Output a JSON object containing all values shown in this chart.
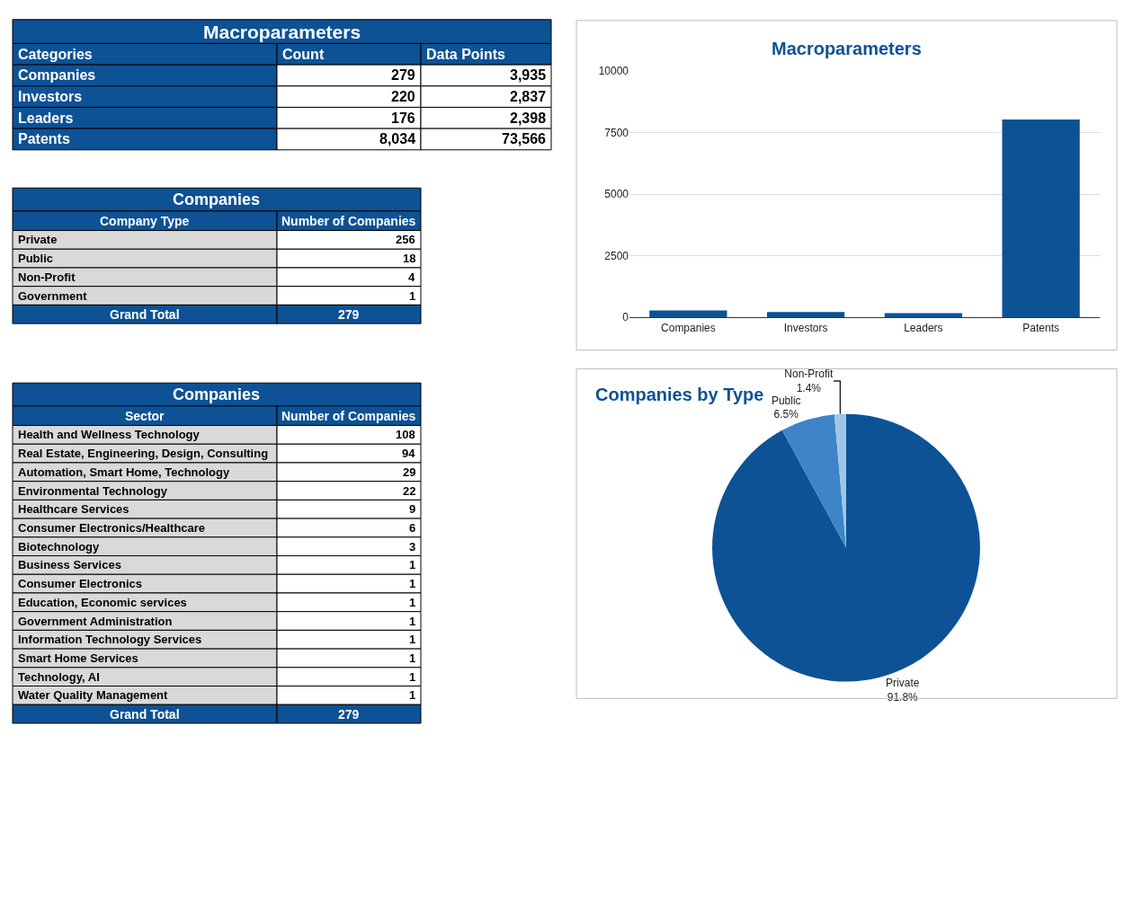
{
  "chart_data": [
    {
      "type": "other",
      "title": "Macroparameters",
      "xlabel": "Categories",
      "categories": [
        "Companies",
        "Investors",
        "Leaders",
        "Patents"
      ],
      "series": [
        {
          "name": "Count",
          "values": [
            279,
            220,
            176,
            8034
          ],
          "value_labels": [
            "279",
            "220",
            "176",
            "8,034"
          ]
        },
        {
          "name": "Data Points",
          "values": [
            3935,
            2837,
            2398,
            73566
          ],
          "value_labels": [
            "3,935",
            "2,837",
            "2,398",
            "73,566"
          ]
        }
      ]
    },
    {
      "type": "bar",
      "title": "Macroparameters",
      "categories": [
        "Companies",
        "Investors",
        "Leaders",
        "Patents"
      ],
      "values": [
        279,
        220,
        176,
        8034
      ],
      "color": "#0d5295",
      "ylim": [
        0,
        10000
      ],
      "yticks": [
        0,
        2500,
        5000,
        7500,
        10000
      ],
      "grid": "y"
    },
    {
      "type": "other",
      "title": "Companies",
      "xlabel": "Company Type",
      "categories": [
        "Private",
        "Public",
        "Non-Profit",
        "Government"
      ],
      "series": [
        {
          "name": "Number of Companies",
          "values": [
            256,
            18,
            4,
            1
          ]
        }
      ],
      "totals": [
        "279"
      ],
      "annotations": [
        "Grand Total"
      ],
      "data_labels": true
    },
    {
      "type": "pie",
      "title": "Companies by Type",
      "categories": [
        "Private",
        "Public",
        "Non-Profit"
      ],
      "values": [
        91.8,
        6.5,
        1.4
      ],
      "colors": [
        "#0d5295",
        "#3d85c6",
        "#9fc5e8"
      ],
      "value_labels": [
        "91.8%",
        "6.5%",
        "1.4%"
      ]
    },
    {
      "type": "other",
      "title": "Companies",
      "xlabel": "Sector",
      "categories": [
        "Health and Wellness Technology",
        "Real Estate, Engineering, Design, Consulting",
        "Automation, Smart Home, Technology",
        "Environmental Technology",
        "Healthcare Services",
        "Consumer Electronics/Healthcare",
        "Biotechnology",
        "Business Services",
        "Consumer Electronics",
        "Education, Economic services",
        "Government Administration",
        "Information Technology Services",
        "Smart Home Services",
        "Technology, AI",
        "Water Quality Management"
      ],
      "series": [
        {
          "name": "Number of Companies",
          "values": [
            108,
            94,
            29,
            22,
            9,
            6,
            3,
            1,
            1,
            1,
            1,
            1,
            1,
            1,
            1
          ]
        }
      ],
      "totals": [
        "279"
      ],
      "annotations": [
        "Grand Total"
      ],
      "data_labels": true
    }
  ]
}
